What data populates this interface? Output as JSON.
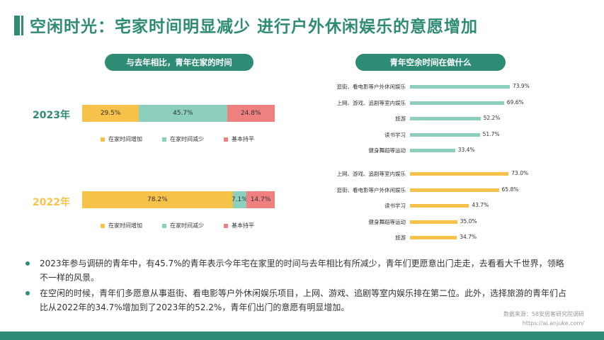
{
  "title": "空闲时光：宅家时间明显减少 进行户外休闲娱乐的意愿增加",
  "colors": {
    "accent": "#2e8b74",
    "yellow": "#f7c24a",
    "teal": "#8ccfbd",
    "red": "#ee8080",
    "ink": "#333333"
  },
  "left_panel": {
    "heading": "与去年相比，青年在家的时间"
  },
  "right_panel": {
    "heading": "青年空余时间在做什么"
  },
  "chart_data": [
    {
      "type": "bar",
      "stacked": true,
      "orientation": "horizontal",
      "categories": [
        "2023年",
        "2022年"
      ],
      "series": [
        {
          "name": "在家时间增加",
          "values": [
            29.5,
            78.2
          ],
          "labels": [
            "29.5%",
            "78.2%"
          ],
          "color": "#f7c24a"
        },
        {
          "name": "在家时间减少",
          "values": [
            45.7,
            7.1
          ],
          "labels": [
            "45.7%",
            "7.1%"
          ],
          "color": "#8ccfbd"
        },
        {
          "name": "基本持平",
          "values": [
            24.8,
            14.7
          ],
          "labels": [
            "24.8%",
            "14.7%"
          ],
          "color": "#ee8080"
        }
      ],
      "category_colors": [
        "#2e8b74",
        "#f7c24a"
      ],
      "legend": "bottom"
    },
    {
      "type": "bar",
      "orientation": "horizontal",
      "group": "2023",
      "categories": [
        "逛街、看电影等户外休闲娱乐",
        "上网、游戏、追剧等室内娱乐",
        "旅游",
        "读书学习",
        "健身舞蹈等运动"
      ],
      "values": [
        73.9,
        69.6,
        52.2,
        51.7,
        33.4
      ],
      "labels": [
        "73.9%",
        "69.6%",
        "52.2%",
        "51.7%",
        "33.4%"
      ],
      "color": "#8ccfbd"
    },
    {
      "type": "bar",
      "orientation": "horizontal",
      "group": "2022",
      "categories": [
        "上网、游戏、追剧等室内娱乐",
        "逛街、看电影等户外休闲娱乐",
        "读书学习",
        "健身舞蹈等运动",
        "旅游"
      ],
      "values": [
        73.0,
        65.8,
        43.7,
        35.0,
        34.7
      ],
      "labels": [
        "73.0%",
        "65.8%",
        "43.7%",
        "35.0%",
        "34.7%"
      ],
      "color": "#f7c24a"
    }
  ],
  "bullets": [
    "2023年参与调研的青年中，有45.7%的青年表示今年宅在家里的时间与去年相比有所减少，青年们更愿意出门走走，去看看大千世界，领略不一样的风景。",
    "在空闲的时候，青年们多愿意从事逛街、看电影等户外休闲娱乐项目，上网、游戏、追剧等室内娱乐排在第二位。此外，选择旅游的青年们占比从2022年的34.7%增加到了2023年的52.2%，青年们出门的意愿有明显增加。"
  ],
  "source": {
    "line1": "数据来源：58安居客研究院调研",
    "line2": "https://ai.anjuke.com/"
  }
}
